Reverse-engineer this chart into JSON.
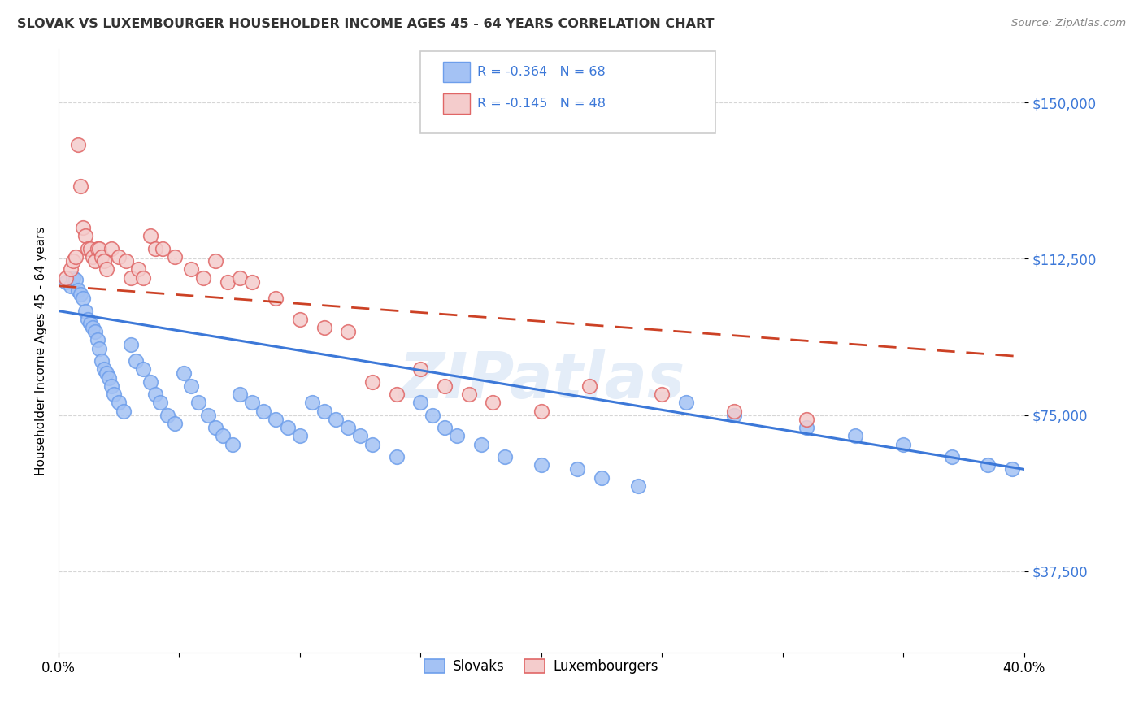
{
  "title": "SLOVAK VS LUXEMBOURGER HOUSEHOLDER INCOME AGES 45 - 64 YEARS CORRELATION CHART",
  "source": "Source: ZipAtlas.com",
  "ylabel": "Householder Income Ages 45 - 64 years",
  "legend_label1": "Slovaks",
  "legend_label2": "Luxembourgers",
  "R1": "-0.364",
  "N1": "68",
  "R2": "-0.145",
  "N2": "48",
  "color_blue_fill": "#a4c2f4",
  "color_blue_edge": "#6d9eeb",
  "color_pink_fill": "#f4cccc",
  "color_pink_edge": "#e06666",
  "color_line_blue": "#3c78d8",
  "color_line_pink": "#cc4125",
  "color_R_N": "#3c78d8",
  "xmin": 0.0,
  "xmax": 0.4,
  "ymin": 18000,
  "ymax": 163000,
  "yticks": [
    37500,
    75000,
    112500,
    150000
  ],
  "background_color": "#ffffff",
  "grid_color": "#cccccc",
  "watermark": "ZIPatlas",
  "slovak_x": [
    0.003,
    0.005,
    0.006,
    0.007,
    0.008,
    0.009,
    0.01,
    0.011,
    0.012,
    0.013,
    0.014,
    0.015,
    0.016,
    0.017,
    0.018,
    0.019,
    0.02,
    0.021,
    0.022,
    0.023,
    0.025,
    0.027,
    0.03,
    0.032,
    0.035,
    0.038,
    0.04,
    0.042,
    0.045,
    0.048,
    0.052,
    0.055,
    0.058,
    0.062,
    0.065,
    0.068,
    0.072,
    0.075,
    0.08,
    0.085,
    0.09,
    0.095,
    0.1,
    0.105,
    0.11,
    0.115,
    0.12,
    0.125,
    0.13,
    0.14,
    0.15,
    0.155,
    0.16,
    0.165,
    0.175,
    0.185,
    0.2,
    0.215,
    0.225,
    0.24,
    0.26,
    0.28,
    0.31,
    0.33,
    0.35,
    0.37,
    0.385,
    0.395
  ],
  "slovak_y": [
    107000,
    106000,
    108000,
    107500,
    105000,
    104000,
    103000,
    100000,
    98000,
    97000,
    96000,
    95000,
    93000,
    91000,
    88000,
    86000,
    85000,
    84000,
    82000,
    80000,
    78000,
    76000,
    92000,
    88000,
    86000,
    83000,
    80000,
    78000,
    75000,
    73000,
    85000,
    82000,
    78000,
    75000,
    72000,
    70000,
    68000,
    80000,
    78000,
    76000,
    74000,
    72000,
    70000,
    78000,
    76000,
    74000,
    72000,
    70000,
    68000,
    65000,
    78000,
    75000,
    72000,
    70000,
    68000,
    65000,
    63000,
    62000,
    60000,
    58000,
    78000,
    75000,
    72000,
    70000,
    68000,
    65000,
    63000,
    62000
  ],
  "luxembourger_x": [
    0.003,
    0.005,
    0.006,
    0.007,
    0.008,
    0.009,
    0.01,
    0.011,
    0.012,
    0.013,
    0.014,
    0.015,
    0.016,
    0.017,
    0.018,
    0.019,
    0.02,
    0.022,
    0.025,
    0.028,
    0.03,
    0.033,
    0.035,
    0.038,
    0.04,
    0.043,
    0.048,
    0.055,
    0.06,
    0.065,
    0.07,
    0.075,
    0.08,
    0.09,
    0.1,
    0.11,
    0.12,
    0.13,
    0.14,
    0.15,
    0.16,
    0.17,
    0.18,
    0.2,
    0.22,
    0.25,
    0.28,
    0.31
  ],
  "luxembourger_y": [
    108000,
    110000,
    112000,
    113000,
    140000,
    130000,
    120000,
    118000,
    115000,
    115000,
    113000,
    112000,
    115000,
    115000,
    113000,
    112000,
    110000,
    115000,
    113000,
    112000,
    108000,
    110000,
    108000,
    118000,
    115000,
    115000,
    113000,
    110000,
    108000,
    112000,
    107000,
    108000,
    107000,
    103000,
    98000,
    96000,
    95000,
    83000,
    80000,
    86000,
    82000,
    80000,
    78000,
    76000,
    82000,
    80000,
    76000,
    74000
  ],
  "blue_line_x0": 0.0,
  "blue_line_x1": 0.4,
  "blue_line_y0": 100000,
  "blue_line_y1": 62000,
  "pink_line_x0": 0.0,
  "pink_line_x1": 0.4,
  "pink_line_y0": 106000,
  "pink_line_y1": 89000
}
